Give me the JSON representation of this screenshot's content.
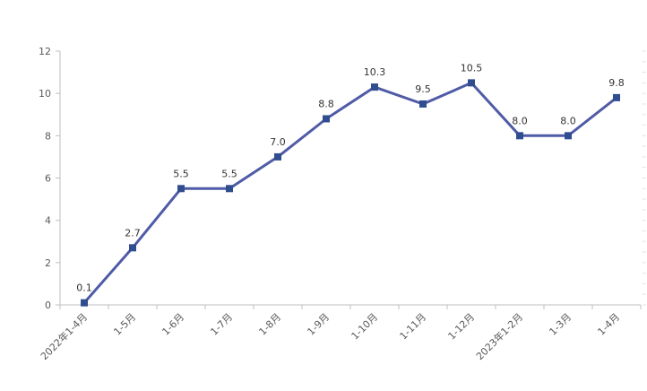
{
  "chart_data": {
    "type": "line",
    "categories": [
      "2022年1-4月",
      "1-5月",
      "1-6月",
      "1-7月",
      "1-8月",
      "1-9月",
      "1-10月",
      "1-11月",
      "1-12月",
      "2023年1-2月",
      "1-3月",
      "1-4月"
    ],
    "series": [
      {
        "values": [
          0.1,
          2.7,
          5.5,
          5.5,
          7.0,
          8.8,
          10.3,
          9.5,
          10.5,
          8.0,
          8.0,
          9.8
        ]
      }
    ],
    "data_labels": [
      "0.1",
      "2.7",
      "5.5",
      "5.5",
      "7.0",
      "8.8",
      "10.3",
      "9.5",
      "10.5",
      "8.0",
      "8.0",
      "9.8"
    ],
    "ylim": [
      0,
      12
    ],
    "yticks": [
      0,
      2,
      4,
      6,
      8,
      10,
      12
    ],
    "ytick_labels": [
      "0",
      "2",
      "4",
      "6",
      "8",
      "10",
      "12"
    ],
    "line_color": "#4F5BA6",
    "marker_color": "#2F4D8F",
    "grid": false,
    "legend": "none"
  }
}
